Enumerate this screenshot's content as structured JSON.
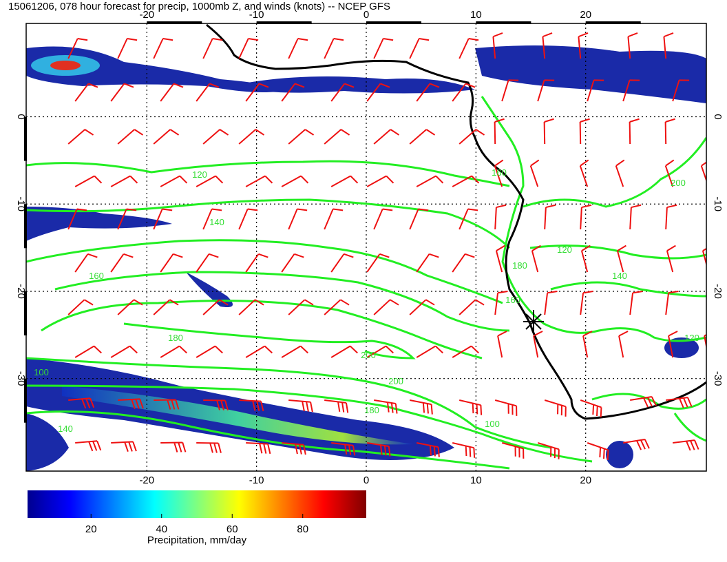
{
  "title": "15061206, 078 hour forecast for precip, 1000mb Z, and winds (knots) -- NCEP GFS",
  "map": {
    "lonlim": [
      -31,
      31
    ],
    "latlim": [
      -40.6,
      10.7
    ],
    "lonticks": [
      -20,
      -10,
      0,
      10,
      20
    ],
    "latticks": [
      0,
      -10,
      -20,
      -30
    ]
  },
  "contour_labels": [
    "120",
    "140",
    "160",
    "180",
    "200",
    "100",
    "120",
    "140",
    "160",
    "180",
    "200",
    "120",
    "140",
    "160",
    "180",
    "200",
    "100"
  ],
  "colorbar": {
    "label": "Precipitation, mm/day",
    "lim": [
      2,
      98
    ],
    "ticks": [
      20,
      40,
      60,
      80
    ]
  }
}
